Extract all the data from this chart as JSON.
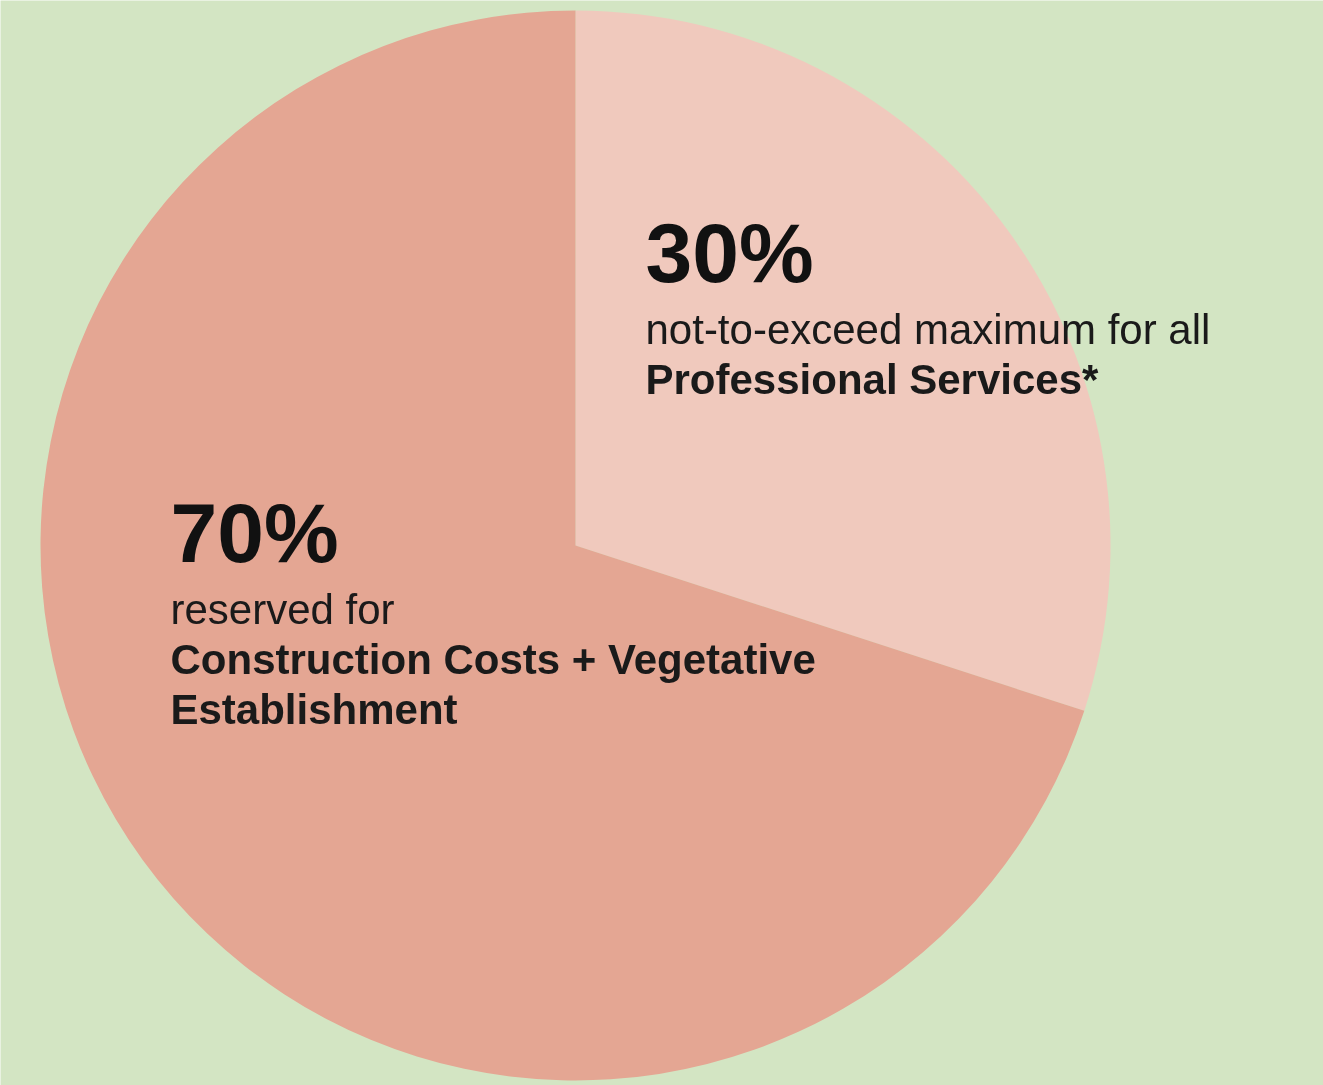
{
  "chart_data": {
    "type": "pie",
    "categories": [
      "Professional Services*",
      "Construction Costs + Vegetative Establishment"
    ],
    "values": [
      30,
      70
    ],
    "colors": [
      "#f0c9bd",
      "#e4a693"
    ],
    "value_labels": [
      "30%",
      "70%"
    ],
    "annotations": [
      "not-to-exceed maximum for all",
      "reserved for"
    ]
  }
}
